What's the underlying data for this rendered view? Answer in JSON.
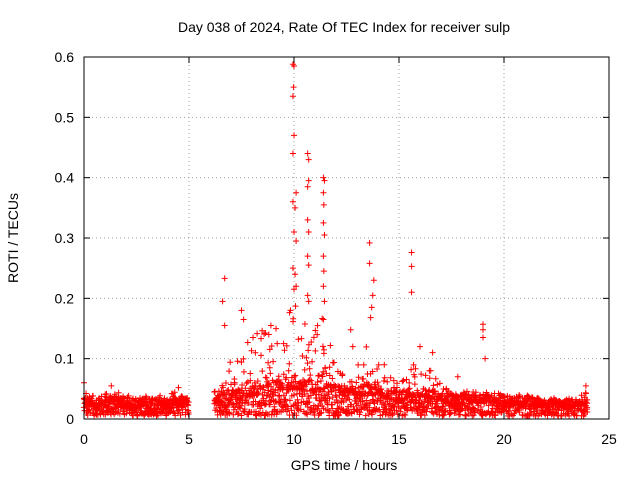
{
  "chart_data": {
    "type": "scatter",
    "title": "Day 038 of 2024, Rate Of TEC Index for receiver sulp",
    "xlabel": "GPS time / hours",
    "ylabel": "ROTI / TECUs",
    "xlim": [
      0,
      25
    ],
    "ylim": [
      0,
      0.6
    ],
    "x_ticks": [
      "0",
      "5",
      "10",
      "15",
      "20",
      "25"
    ],
    "y_ticks": [
      "0",
      "0.1",
      "0.2",
      "0.3",
      "0.4",
      "0.5",
      "0.6"
    ],
    "grid": true,
    "marker": "plus",
    "series_color": "#ff0000",
    "data_gap_hours": [
      5.0,
      6.2
    ],
    "envelope": {
      "x": [
        0.0,
        0.5,
        1.0,
        1.5,
        2.0,
        3.0,
        4.0,
        4.5,
        5.0,
        6.2,
        7.0,
        8.0,
        8.8,
        9.5,
        10.0,
        10.5,
        11.0,
        11.5,
        12.0,
        12.5,
        13.0,
        13.5,
        14.0,
        14.5,
        15.0,
        15.5,
        16.0,
        16.5,
        17.0,
        18.0,
        19.0,
        20.0,
        21.0,
        22.0,
        23.0,
        24.0
      ],
      "baseline": [
        0.025,
        0.022,
        0.024,
        0.025,
        0.023,
        0.022,
        0.024,
        0.026,
        0.022,
        0.025,
        0.032,
        0.038,
        0.045,
        0.048,
        0.05,
        0.048,
        0.046,
        0.045,
        0.04,
        0.038,
        0.038,
        0.042,
        0.04,
        0.035,
        0.03,
        0.036,
        0.038,
        0.034,
        0.03,
        0.028,
        0.028,
        0.026,
        0.025,
        0.022,
        0.02,
        0.022
      ],
      "upper": [
        0.045,
        0.038,
        0.042,
        0.05,
        0.04,
        0.038,
        0.04,
        0.048,
        0.035,
        0.045,
        0.1,
        0.14,
        0.16,
        0.15,
        0.2,
        0.18,
        0.2,
        0.16,
        0.09,
        0.08,
        0.09,
        0.15,
        0.12,
        0.08,
        0.06,
        0.09,
        0.1,
        0.08,
        0.06,
        0.05,
        0.05,
        0.04,
        0.04,
        0.035,
        0.035,
        0.045
      ]
    },
    "highlight_points": [
      [
        0.0,
        0.06
      ],
      [
        1.3,
        0.055
      ],
      [
        4.5,
        0.052
      ],
      [
        6.7,
        0.233
      ],
      [
        6.6,
        0.195
      ],
      [
        6.7,
        0.155
      ],
      [
        7.5,
        0.18
      ],
      [
        7.6,
        0.165
      ],
      [
        8.8,
        0.14
      ],
      [
        8.9,
        0.155
      ],
      [
        9.2,
        0.125
      ],
      [
        9.95,
        0.588
      ],
      [
        10.0,
        0.585
      ],
      [
        9.98,
        0.55
      ],
      [
        9.95,
        0.535
      ],
      [
        10.0,
        0.47
      ],
      [
        9.95,
        0.44
      ],
      [
        10.65,
        0.44
      ],
      [
        10.7,
        0.43
      ],
      [
        10.7,
        0.395
      ],
      [
        10.65,
        0.385
      ],
      [
        10.1,
        0.375
      ],
      [
        9.95,
        0.36
      ],
      [
        10.05,
        0.35
      ],
      [
        10.65,
        0.33
      ],
      [
        10.7,
        0.31
      ],
      [
        10.0,
        0.31
      ],
      [
        10.1,
        0.295
      ],
      [
        9.95,
        0.25
      ],
      [
        10.05,
        0.24
      ],
      [
        10.65,
        0.27
      ],
      [
        10.7,
        0.255
      ],
      [
        10.65,
        0.205
      ],
      [
        10.7,
        0.195
      ],
      [
        10.1,
        0.22
      ],
      [
        10.0,
        0.215
      ],
      [
        11.4,
        0.4
      ],
      [
        11.45,
        0.395
      ],
      [
        11.4,
        0.375
      ],
      [
        11.42,
        0.355
      ],
      [
        11.4,
        0.325
      ],
      [
        11.45,
        0.305
      ],
      [
        11.4,
        0.27
      ],
      [
        11.42,
        0.245
      ],
      [
        11.4,
        0.22
      ],
      [
        11.45,
        0.195
      ],
      [
        11.4,
        0.165
      ],
      [
        12.7,
        0.148
      ],
      [
        12.8,
        0.12
      ],
      [
        13.6,
        0.292
      ],
      [
        13.6,
        0.258
      ],
      [
        13.8,
        0.23
      ],
      [
        13.75,
        0.205
      ],
      [
        13.7,
        0.185
      ],
      [
        13.65,
        0.168
      ],
      [
        14.3,
        0.09
      ],
      [
        15.6,
        0.276
      ],
      [
        15.6,
        0.253
      ],
      [
        15.6,
        0.21
      ],
      [
        16.0,
        0.12
      ],
      [
        16.6,
        0.11
      ],
      [
        17.8,
        0.07
      ],
      [
        19.0,
        0.157
      ],
      [
        19.0,
        0.148
      ],
      [
        19.0,
        0.135
      ],
      [
        19.1,
        0.1
      ],
      [
        23.9,
        0.055
      ]
    ]
  }
}
